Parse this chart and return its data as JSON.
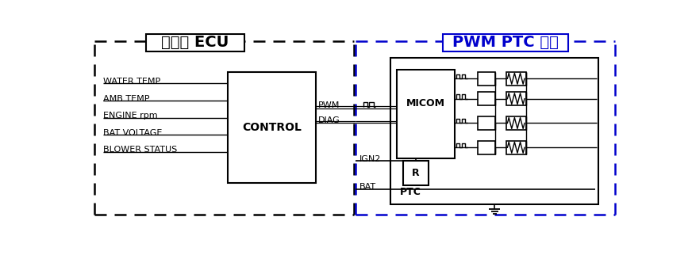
{
  "title_left": "자동차 ECU",
  "title_right": "PWM PTC 히터",
  "left_labels": [
    "WATER TEMP",
    "AMB TEMP",
    "ENGINE rpm",
    "BAT VOLTAGE",
    "BLOWER STATUS"
  ],
  "control_label": "CONTROL",
  "micom_label": "MICOM",
  "r_label": "R",
  "ptc_label": "PTC",
  "pwm_label": "PWM",
  "diag_label": "DIAG",
  "ign2_label": "IGN2",
  "bat_label": "BAT",
  "left_border_color": "#000000",
  "right_border_color": "#0000CC",
  "box_color": "#000000",
  "bg_color": "white",
  "font_size": 8.0,
  "title_font_size": 14
}
